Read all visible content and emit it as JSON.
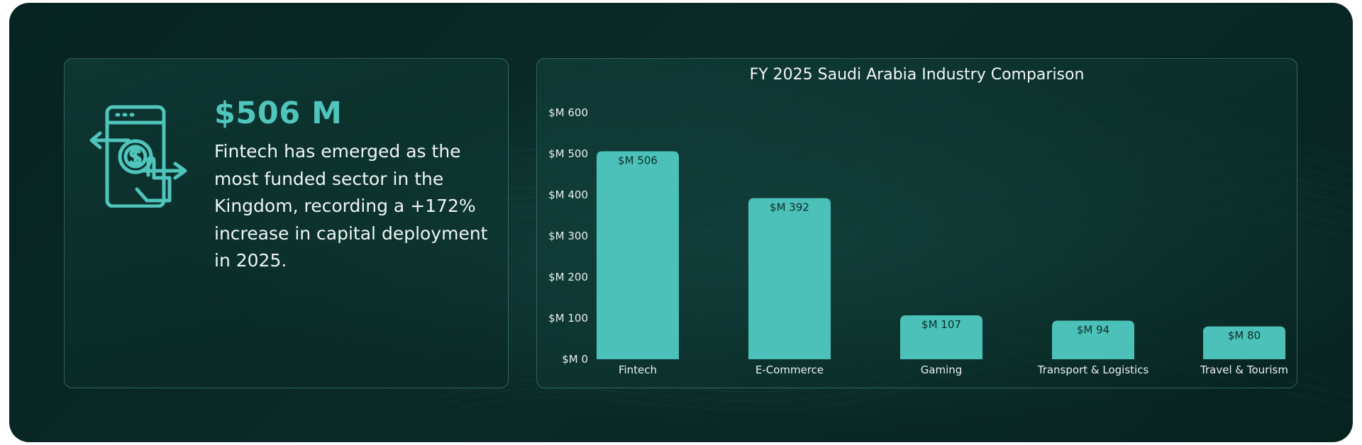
{
  "kpi": {
    "value": "$506 M",
    "description": "Fintech has emerged as the most funded sector in the Kingdom, recording a +172% increase in capital deployment in 2025.",
    "icon": "mobile-payment-icon"
  },
  "colors": {
    "background": "#072523",
    "accent": "#4fc5bb",
    "bar": "#4cc1b9",
    "text": "#eef5f4"
  },
  "chart_data": {
    "type": "bar",
    "title": "FY 2025 Saudi Arabia Industry Comparison",
    "categories": [
      "Fintech",
      "E-Commerce",
      "Gaming",
      "Transport & Logistics",
      "Travel & Tourism"
    ],
    "values": [
      506,
      392,
      107,
      94,
      80
    ],
    "value_labels": [
      "$M 506",
      "$M 392",
      "$M 107",
      "$M 94",
      "$M 80"
    ],
    "y_ticks": [
      0,
      100,
      200,
      300,
      400,
      500,
      600
    ],
    "y_tick_labels": [
      "$M 0",
      "$M 100",
      "$M 200",
      "$M 300",
      "$M 400",
      "$M 500",
      "$M 600"
    ],
    "ylim": [
      0,
      600
    ],
    "xlabel": "",
    "ylabel": "",
    "grid": false,
    "legend": "none"
  }
}
